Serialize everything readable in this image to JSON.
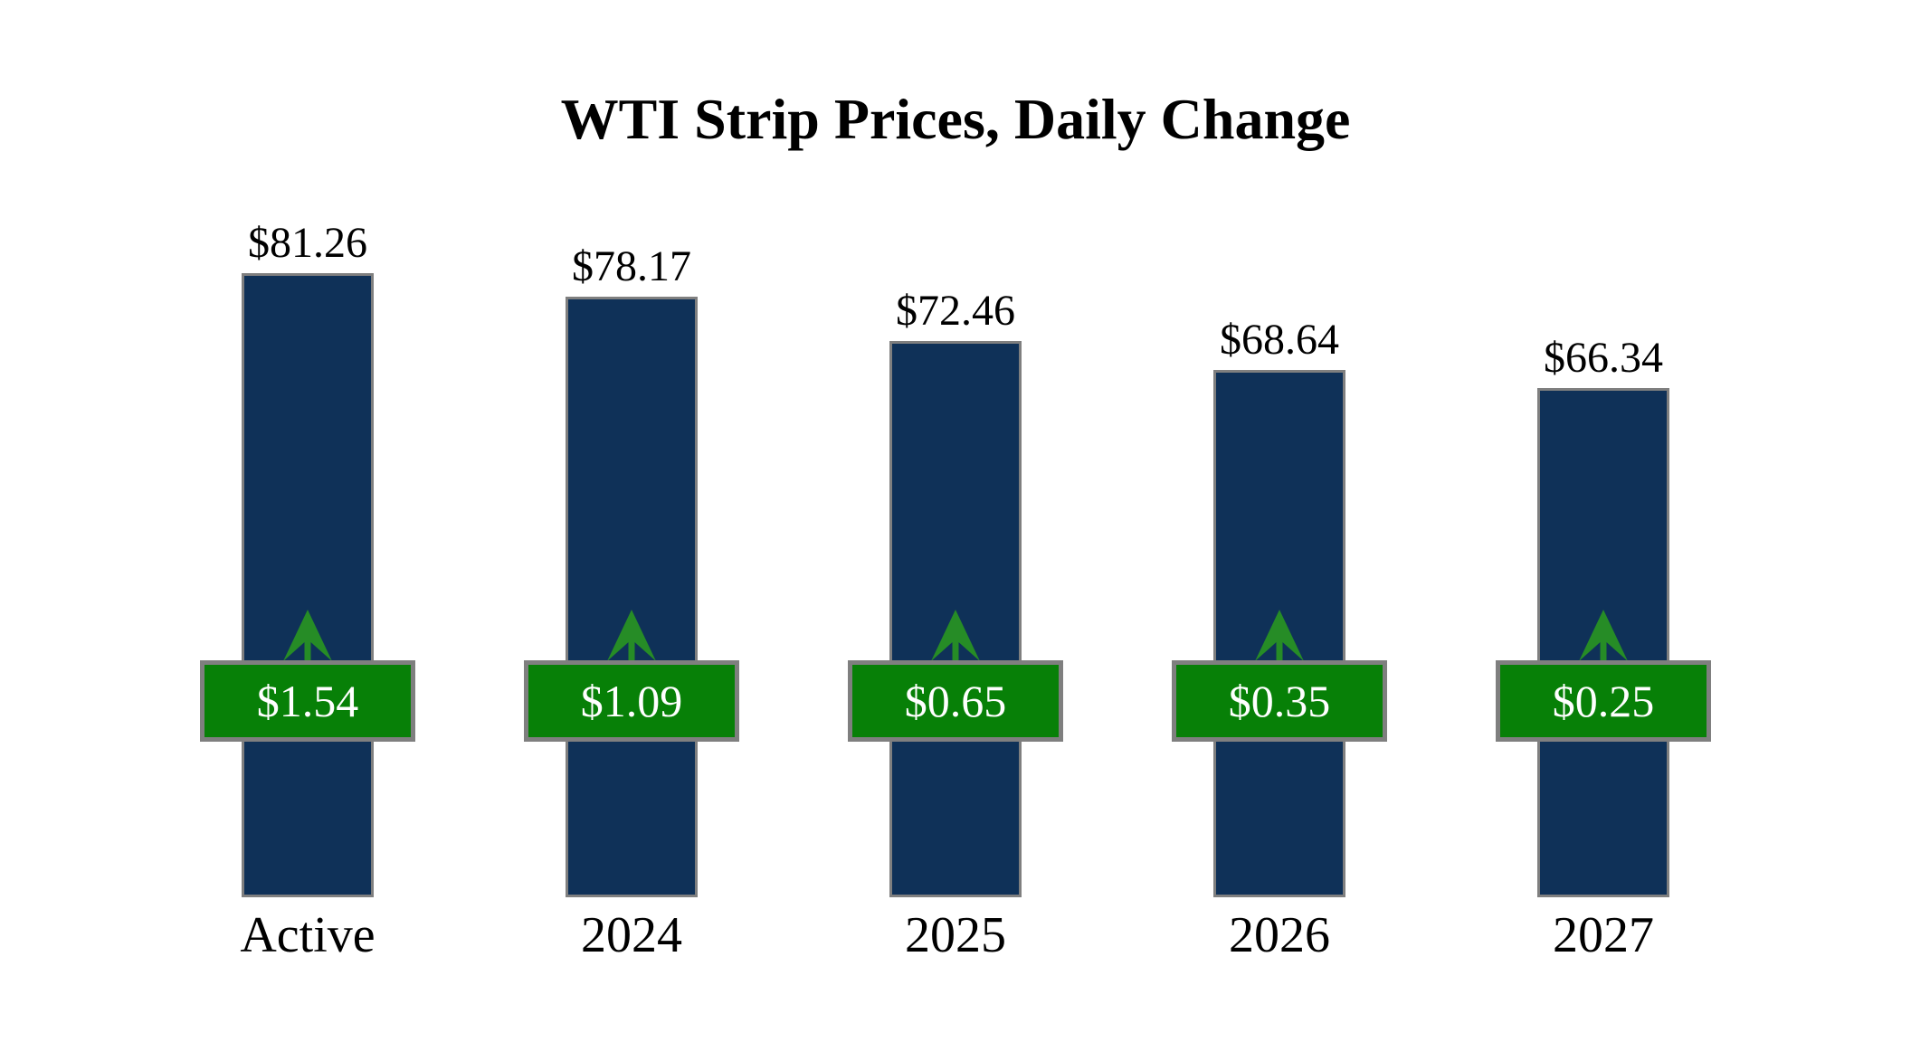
{
  "chart_data": {
    "type": "bar",
    "title": "WTI Strip Prices, Daily Change",
    "categories": [
      "Active",
      "2024",
      "2025",
      "2026",
      "2027"
    ],
    "series": [
      {
        "name": "Strip Price",
        "values": [
          81.26,
          78.17,
          72.46,
          68.64,
          66.34
        ],
        "labels": [
          "$81.26",
          "$78.17",
          "$72.46",
          "$68.64",
          "$66.34"
        ]
      },
      {
        "name": "Daily Change",
        "values": [
          1.54,
          1.09,
          0.65,
          0.35,
          0.25
        ],
        "labels": [
          "$1.54",
          "$1.09",
          "$0.65",
          "$0.35",
          "$0.25"
        ],
        "direction": "up"
      }
    ],
    "xlabel": "",
    "ylabel": "",
    "baseline": 0,
    "grid": false,
    "axes_visible": false,
    "legend_position": "none",
    "colors": {
      "bar": "#0f3158",
      "bar_border": "#7f7f7f",
      "badge_background": "#078007",
      "badge_border": "#7f7f7f",
      "badge_text": "#ffffff",
      "arrow": "#268c26",
      "title_text": "#000000",
      "background": "#ffffff"
    }
  }
}
